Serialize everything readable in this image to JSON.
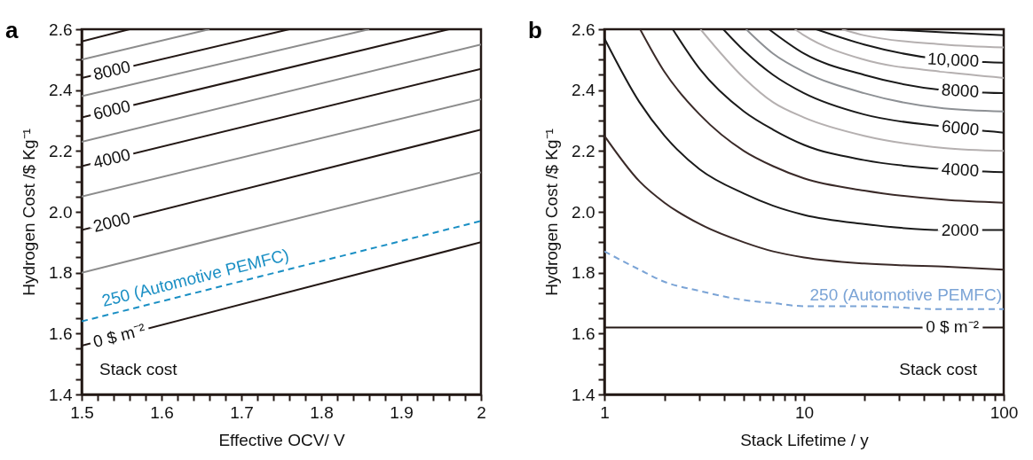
{
  "chart_data": [
    {
      "type": "line",
      "title": "a",
      "xlabel": "Effective OCV/ V",
      "ylabel": "Hydrogen Cost /$ Kg⁻¹",
      "annotations": [
        "Stack cost"
      ],
      "xlim": [
        1.5,
        2
      ],
      "ylim": [
        1.4,
        2.6
      ],
      "xticks": [
        1.5,
        {
          "value": 1.52,
          "label": null
        },
        {
          "value": 1.54,
          "label": null
        },
        {
          "value": 1.56,
          "label": null
        },
        {
          "value": 1.58,
          "label": null
        },
        1.6,
        {
          "value": 1.62,
          "label": null
        },
        {
          "value": 1.64,
          "label": null
        },
        {
          "value": 1.66,
          "label": null
        },
        {
          "value": 1.68,
          "label": null
        },
        1.7,
        {
          "value": 1.72,
          "label": null
        },
        {
          "value": 1.74,
          "label": null
        },
        {
          "value": 1.76,
          "label": null
        },
        {
          "value": 1.78,
          "label": null
        },
        1.8,
        {
          "value": 1.82,
          "label": null
        },
        {
          "value": 1.84,
          "label": null
        },
        {
          "value": 1.86,
          "label": null
        },
        {
          "value": 1.88,
          "label": null
        },
        1.9,
        {
          "value": 1.92,
          "label": null
        },
        {
          "value": 1.94,
          "label": null
        },
        {
          "value": 1.96,
          "label": null
        },
        {
          "value": 1.98,
          "label": null
        },
        2
      ],
      "yticks": [
        1.4,
        {
          "value": 1.45,
          "label": null
        },
        {
          "value": 1.5,
          "label": null
        },
        {
          "value": 1.55,
          "label": null
        },
        1.6,
        {
          "value": 1.65,
          "label": null
        },
        {
          "value": 1.7,
          "label": null
        },
        {
          "value": 1.75,
          "label": null
        },
        1.8,
        {
          "value": 1.85,
          "label": null
        },
        {
          "value": 1.9,
          "label": null
        },
        {
          "value": 1.95,
          "label": null
        },
        {
          "value": 2,
          "label": "2.0"
        },
        {
          "value": 2.05,
          "label": null
        },
        {
          "value": 2.1,
          "label": null
        },
        {
          "value": 2.15,
          "label": null
        },
        2.2,
        {
          "value": 2.25,
          "label": null
        },
        {
          "value": 2.3,
          "label": null
        },
        {
          "value": 2.35,
          "label": null
        },
        2.4,
        {
          "value": 2.45,
          "label": null
        },
        {
          "value": 2.5,
          "label": null
        },
        {
          "value": 2.55,
          "label": null
        },
        2.6
      ],
      "series": [
        {
          "name": "0 $ m⁻²",
          "color": "#231815",
          "x": [
            1.5,
            2
          ],
          "values": [
            1.56,
            1.9
          ]
        },
        {
          "name": "250 (Automotive PEMFC)",
          "color": "#1a8fc4",
          "line_style": "dashed",
          "x": [
            1.5,
            2
          ],
          "values": [
            1.64,
            1.97
          ]
        },
        {
          "color": "#8c8c8c",
          "x": [
            1.5,
            2
          ],
          "values": [
            1.8,
            2.13
          ]
        },
        {
          "name": "2000",
          "color": "#231815",
          "x": [
            1.5,
            2
          ],
          "values": [
            1.94,
            2.27
          ]
        },
        {
          "color": "#8c8c8c",
          "x": [
            1.5,
            2
          ],
          "values": [
            2.05,
            2.37
          ]
        },
        {
          "name": "4000",
          "color": "#231815",
          "x": [
            1.5,
            2
          ],
          "values": [
            2.15,
            2.47
          ]
        },
        {
          "color": "#8c8c8c",
          "x": [
            1.5,
            2
          ],
          "values": [
            2.23,
            2.55
          ]
        },
        {
          "name": "6000",
          "color": "#231815",
          "x": [
            1.5,
            1.96
          ],
          "values": [
            2.31,
            2.6
          ]
        },
        {
          "color": "#8c8c8c",
          "x": [
            1.5,
            1.86
          ],
          "values": [
            2.38,
            2.6
          ]
        },
        {
          "name": "8000",
          "color": "#231815",
          "x": [
            1.5,
            1.76
          ],
          "values": [
            2.44,
            2.6
          ]
        },
        {
          "color": "#8c8c8c",
          "x": [
            1.5,
            1.66
          ],
          "values": [
            2.5,
            2.6
          ]
        },
        {
          "color": "#231815",
          "x": [
            1.5,
            1.56
          ],
          "values": [
            2.56,
            2.6
          ]
        }
      ]
    },
    {
      "type": "line",
      "title": "b",
      "xlabel": "Stack Lifetime / y",
      "ylabel": "Hydrogen Cost /$ Kg⁻¹",
      "annotations": [
        "Stack cost"
      ],
      "log": "x",
      "xlim": [
        1,
        100
      ],
      "ylim": [
        1.4,
        2.6
      ],
      "xticks": [
        1,
        {
          "value": 2,
          "label": null
        },
        {
          "value": 3,
          "label": null
        },
        {
          "value": 4,
          "label": null
        },
        {
          "value": 5,
          "label": null
        },
        {
          "value": 6,
          "label": null
        },
        {
          "value": 7,
          "label": null
        },
        {
          "value": 8,
          "label": null
        },
        {
          "value": 9,
          "label": null
        },
        10,
        {
          "value": 20,
          "label": null
        },
        {
          "value": 30,
          "label": null
        },
        {
          "value": 40,
          "label": null
        },
        {
          "value": 50,
          "label": null
        },
        {
          "value": 60,
          "label": null
        },
        {
          "value": 70,
          "label": null
        },
        {
          "value": 80,
          "label": null
        },
        {
          "value": 90,
          "label": null
        },
        100
      ],
      "yticks": [
        1.4,
        {
          "value": 1.45,
          "label": null
        },
        {
          "value": 1.5,
          "label": null
        },
        {
          "value": 1.55,
          "label": null
        },
        1.6,
        {
          "value": 1.65,
          "label": null
        },
        {
          "value": 1.7,
          "label": null
        },
        {
          "value": 1.75,
          "label": null
        },
        1.8,
        {
          "value": 1.85,
          "label": null
        },
        {
          "value": 1.9,
          "label": null
        },
        {
          "value": 1.95,
          "label": null
        },
        {
          "value": 2,
          "label": "2.0"
        },
        {
          "value": 2.05,
          "label": null
        },
        {
          "value": 2.1,
          "label": null
        },
        {
          "value": 2.15,
          "label": null
        },
        2.2,
        {
          "value": 2.25,
          "label": null
        },
        {
          "value": 2.3,
          "label": null
        },
        {
          "value": 2.35,
          "label": null
        },
        2.4,
        {
          "value": 2.45,
          "label": null
        },
        {
          "value": 2.5,
          "label": null
        },
        {
          "value": 2.55,
          "label": null
        },
        2.6
      ],
      "series": [
        {
          "name": "0 $ m⁻²",
          "color": "#231815",
          "x": [
            1,
            100
          ],
          "values": [
            1.62,
            1.62
          ]
        },
        {
          "name": "250 (Automotive PEMFC)",
          "color": "#7ba4d6",
          "line_style": "dashed",
          "x": [
            1,
            1.5,
            2,
            3,
            5,
            7,
            10,
            20,
            50,
            100
          ],
          "values": [
            1.87,
            1.81,
            1.77,
            1.74,
            1.71,
            1.7,
            1.69,
            1.69,
            1.68,
            1.68
          ]
        },
        {
          "color": "#3a2a28",
          "x": [
            1,
            1.5,
            2,
            3,
            5,
            7,
            10,
            20,
            50,
            100
          ],
          "values": [
            2.25,
            2.1,
            2.03,
            1.96,
            1.9,
            1.87,
            1.85,
            1.83,
            1.82,
            1.81
          ]
        },
        {
          "name": "2000",
          "color": "#1a1a1a",
          "x": [
            1,
            1.5,
            2,
            3,
            5,
            7,
            10,
            20,
            50,
            100
          ],
          "values": [
            2.57,
            2.36,
            2.25,
            2.14,
            2.06,
            2.02,
            1.99,
            1.96,
            1.94,
            1.94
          ]
        },
        {
          "color": "#3a2a28",
          "x": [
            1.51,
            2,
            3,
            5,
            7,
            10,
            20,
            50,
            100
          ],
          "values": [
            2.6,
            2.46,
            2.32,
            2.2,
            2.15,
            2.11,
            2.07,
            2.04,
            2.03
          ]
        },
        {
          "name": "4000",
          "color": "#1a1a1a",
          "x": [
            2.2,
            3,
            5,
            7,
            10,
            20,
            50,
            100
          ],
          "values": [
            2.6,
            2.47,
            2.33,
            2.27,
            2.22,
            2.17,
            2.14,
            2.13
          ]
        },
        {
          "color": "#b5b0b0",
          "x": [
            3.03,
            5,
            7,
            10,
            20,
            50,
            100
          ],
          "values": [
            2.6,
            2.44,
            2.36,
            2.31,
            2.25,
            2.21,
            2.2
          ]
        },
        {
          "name": "6000",
          "color": "#1a1a1a",
          "x": [
            3.94,
            5,
            7,
            10,
            20,
            50,
            100
          ],
          "values": [
            2.6,
            2.53,
            2.45,
            2.39,
            2.32,
            2.28,
            2.26
          ]
        },
        {
          "color": "#8d9094",
          "x": [
            5.13,
            7,
            10,
            20,
            50,
            100
          ],
          "values": [
            2.6,
            2.52,
            2.46,
            2.39,
            2.34,
            2.33
          ]
        },
        {
          "name": "8000",
          "color": "#1a1a1a",
          "x": [
            6.67,
            10,
            20,
            50,
            100
          ],
          "values": [
            2.6,
            2.52,
            2.45,
            2.4,
            2.39
          ]
        },
        {
          "color": "#b5b0b0",
          "x": [
            9,
            10,
            20,
            50,
            100
          ],
          "values": [
            2.6,
            2.58,
            2.5,
            2.46,
            2.44
          ]
        },
        {
          "name": "10,000",
          "color": "#1a1a1a",
          "x": [
            11.5,
            20,
            50,
            100
          ],
          "values": [
            2.6,
            2.55,
            2.5,
            2.49
          ]
        },
        {
          "color": "#b5b0b0",
          "x": [
            15.5,
            20,
            50,
            100
          ],
          "values": [
            2.6,
            2.58,
            2.55,
            2.54
          ]
        },
        {
          "color": "#1a1a1a",
          "x": [
            24.9,
            50,
            100
          ],
          "values": [
            2.6,
            2.59,
            2.58
          ]
        }
      ]
    }
  ]
}
